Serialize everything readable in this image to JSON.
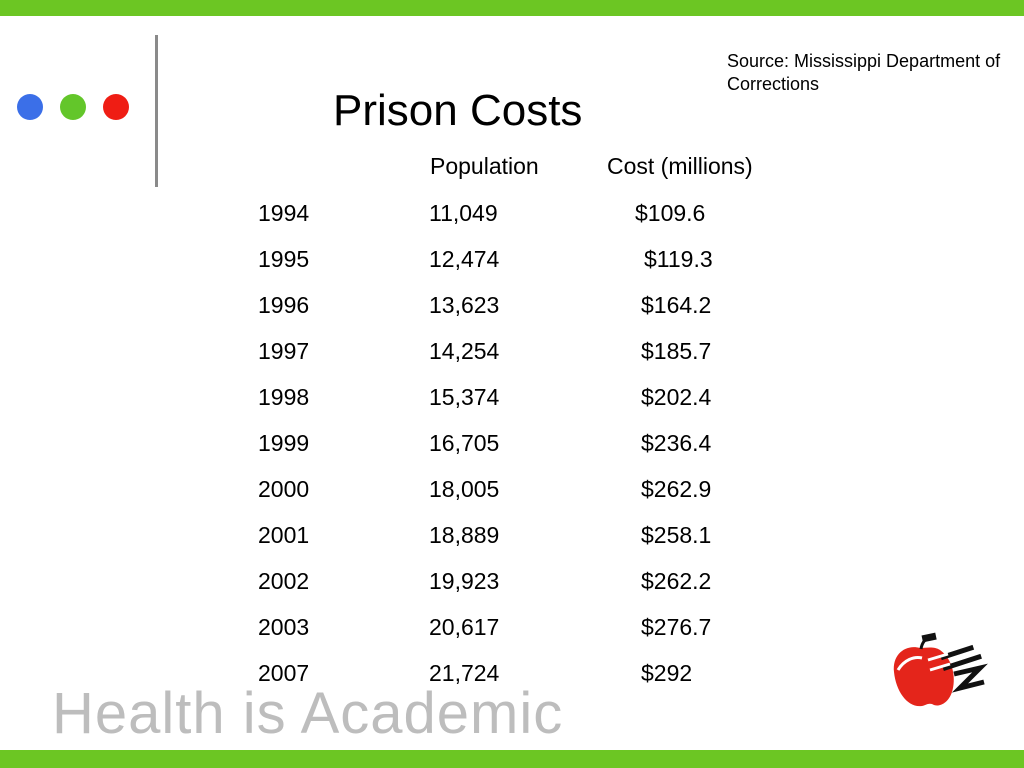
{
  "source_note": "Source: Mississippi Department of Corrections",
  "title": "Prison Costs",
  "table": {
    "headers": {
      "population": "Population",
      "cost": "Cost (millions)"
    },
    "rows": [
      {
        "year": "1994",
        "population": "11,049",
        "cost": "$109.6"
      },
      {
        "year": "1995",
        "population": "12,474",
        "cost": "$119.3"
      },
      {
        "year": "1996",
        "population": "13,623",
        "cost": "$164.2"
      },
      {
        "year": "1997",
        "population": "14,254",
        "cost": "$185.7"
      },
      {
        "year": "1998",
        "population": "15,374",
        "cost": "$202.4"
      },
      {
        "year": "1999",
        "population": "16,705",
        "cost": "$236.4"
      },
      {
        "year": "2000",
        "population": "18,005",
        "cost": "$262.9"
      },
      {
        "year": "2001",
        "population": "18,889",
        "cost": "$258.1"
      },
      {
        "year": "2002",
        "population": "19,923",
        "cost": "$262.2"
      },
      {
        "year": "2003",
        "population": "20,617",
        "cost": "$276.7"
      },
      {
        "year": "2007",
        "population": "21,724",
        "cost": "$292"
      }
    ]
  },
  "brand": {
    "logo_text": "Health is Academic",
    "logo_icon": "apple-logo-icon"
  },
  "colors": {
    "green": "#6cc623",
    "blue": "#3b6fe8",
    "dot_green": "#63c62a",
    "red": "#ef1d14",
    "gray": "#8a8a8a"
  }
}
